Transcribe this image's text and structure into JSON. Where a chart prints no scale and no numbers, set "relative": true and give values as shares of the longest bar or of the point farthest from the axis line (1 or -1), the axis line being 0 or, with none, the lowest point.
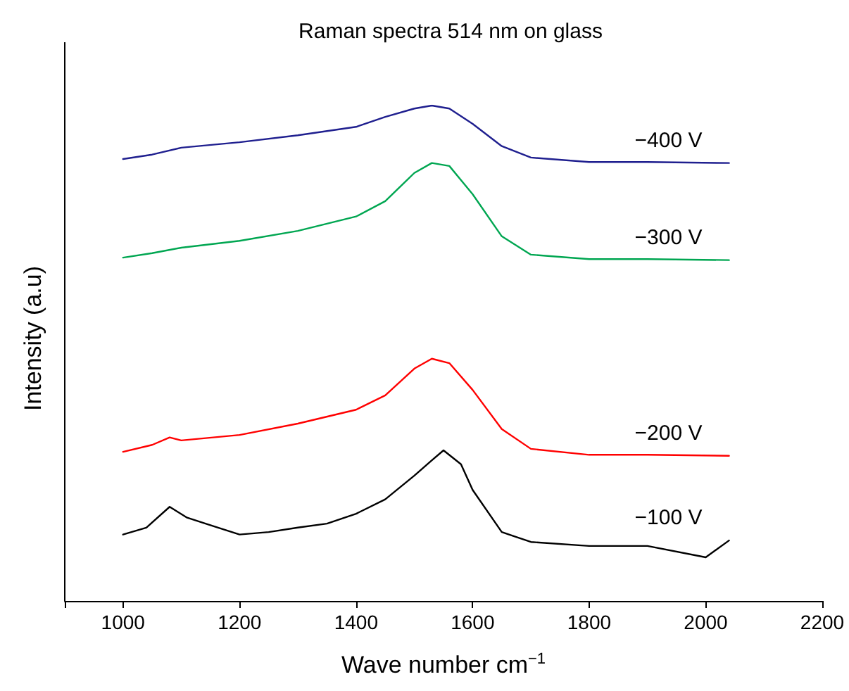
{
  "chart_data": {
    "type": "line",
    "title": "Raman spectra 514 nm on glass",
    "xlabel": "Wave number cm$^{−1}$",
    "ylabel": "Intensity (a.u)",
    "relative": true,
    "xlim": [
      900,
      2200
    ],
    "xticks": [
      {
        "value": 900,
        "label": null
      },
      1000,
      1200,
      1400,
      1600,
      1800,
      2000,
      2200
    ],
    "grid": false,
    "legend": false,
    "marker": "none",
    "line_style": "solid",
    "series": [
      {
        "name": "−400 V",
        "color": "#1f1f8f",
        "x": [
          1000,
          1050,
          1100,
          1200,
          1300,
          1400,
          1450,
          1500,
          1530,
          1560,
          1600,
          1650,
          1700,
          1800,
          1900,
          2040
        ],
        "values": [
          0.892,
          0.901,
          0.915,
          0.926,
          0.94,
          0.957,
          0.977,
          0.994,
          1,
          0.994,
          0.963,
          0.918,
          0.895,
          0.886,
          0.886,
          0.884
        ]
      },
      {
        "name": "−300 V",
        "color": "#00a651",
        "x": [
          1000,
          1050,
          1100,
          1200,
          1300,
          1400,
          1450,
          1500,
          1530,
          1560,
          1600,
          1650,
          1700,
          1800,
          1900,
          2040
        ],
        "values": [
          0.693,
          0.702,
          0.713,
          0.727,
          0.747,
          0.776,
          0.807,
          0.864,
          0.884,
          0.878,
          0.821,
          0.736,
          0.699,
          0.69,
          0.69,
          0.688
        ]
      },
      {
        "name": "−200 V",
        "color": "#ff0000",
        "x": [
          1000,
          1050,
          1080,
          1100,
          1200,
          1300,
          1400,
          1450,
          1500,
          1530,
          1560,
          1600,
          1650,
          1700,
          1800,
          1900,
          2040
        ],
        "values": [
          0.301,
          0.315,
          0.33,
          0.324,
          0.335,
          0.358,
          0.386,
          0.415,
          0.469,
          0.489,
          0.48,
          0.426,
          0.347,
          0.307,
          0.295,
          0.295,
          0.293
        ]
      },
      {
        "name": "−100 V",
        "color": "#000000",
        "x": [
          1000,
          1040,
          1080,
          1110,
          1150,
          1200,
          1250,
          1300,
          1350,
          1400,
          1450,
          1500,
          1530,
          1550,
          1580,
          1600,
          1650,
          1700,
          1800,
          1900,
          2000,
          2040
        ],
        "values": [
          0.134,
          0.148,
          0.19,
          0.168,
          0.153,
          0.134,
          0.139,
          0.148,
          0.156,
          0.176,
          0.205,
          0.253,
          0.284,
          0.304,
          0.276,
          0.224,
          0.139,
          0.119,
          0.111,
          0.111,
          0.088,
          0.122
        ]
      }
    ]
  }
}
